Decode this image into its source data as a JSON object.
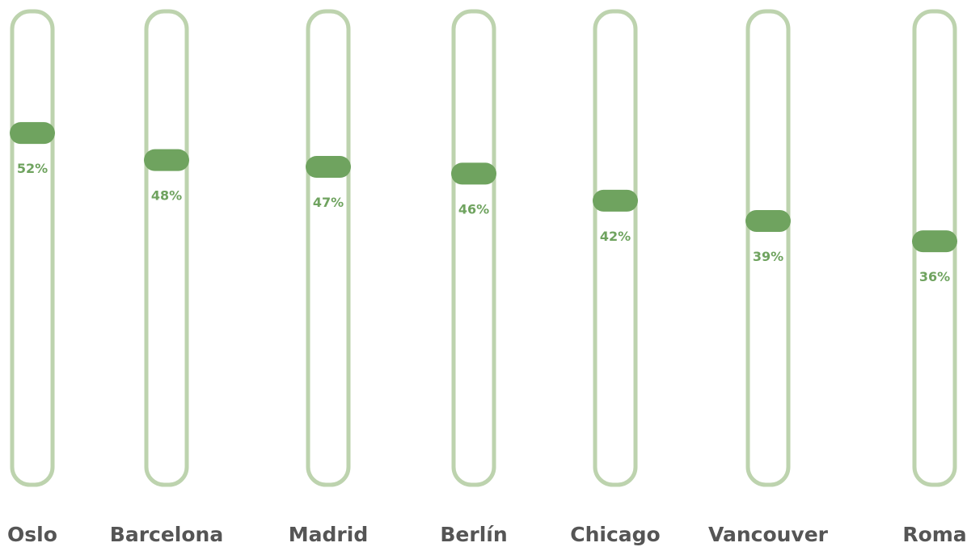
{
  "chart_data": {
    "type": "slider",
    "categories": [
      "Oslo",
      "Barcelona",
      "Madrid",
      "Berlín",
      "Chicago",
      "Vancouver",
      "Roma"
    ],
    "values": [
      52,
      48,
      47,
      46,
      42,
      39,
      36
    ],
    "value_labels": [
      "52%",
      "48%",
      "47%",
      "46%",
      "42%",
      "39%",
      "36%"
    ],
    "color": "#6fa35f",
    "ylim": [
      0,
      70
    ]
  }
}
